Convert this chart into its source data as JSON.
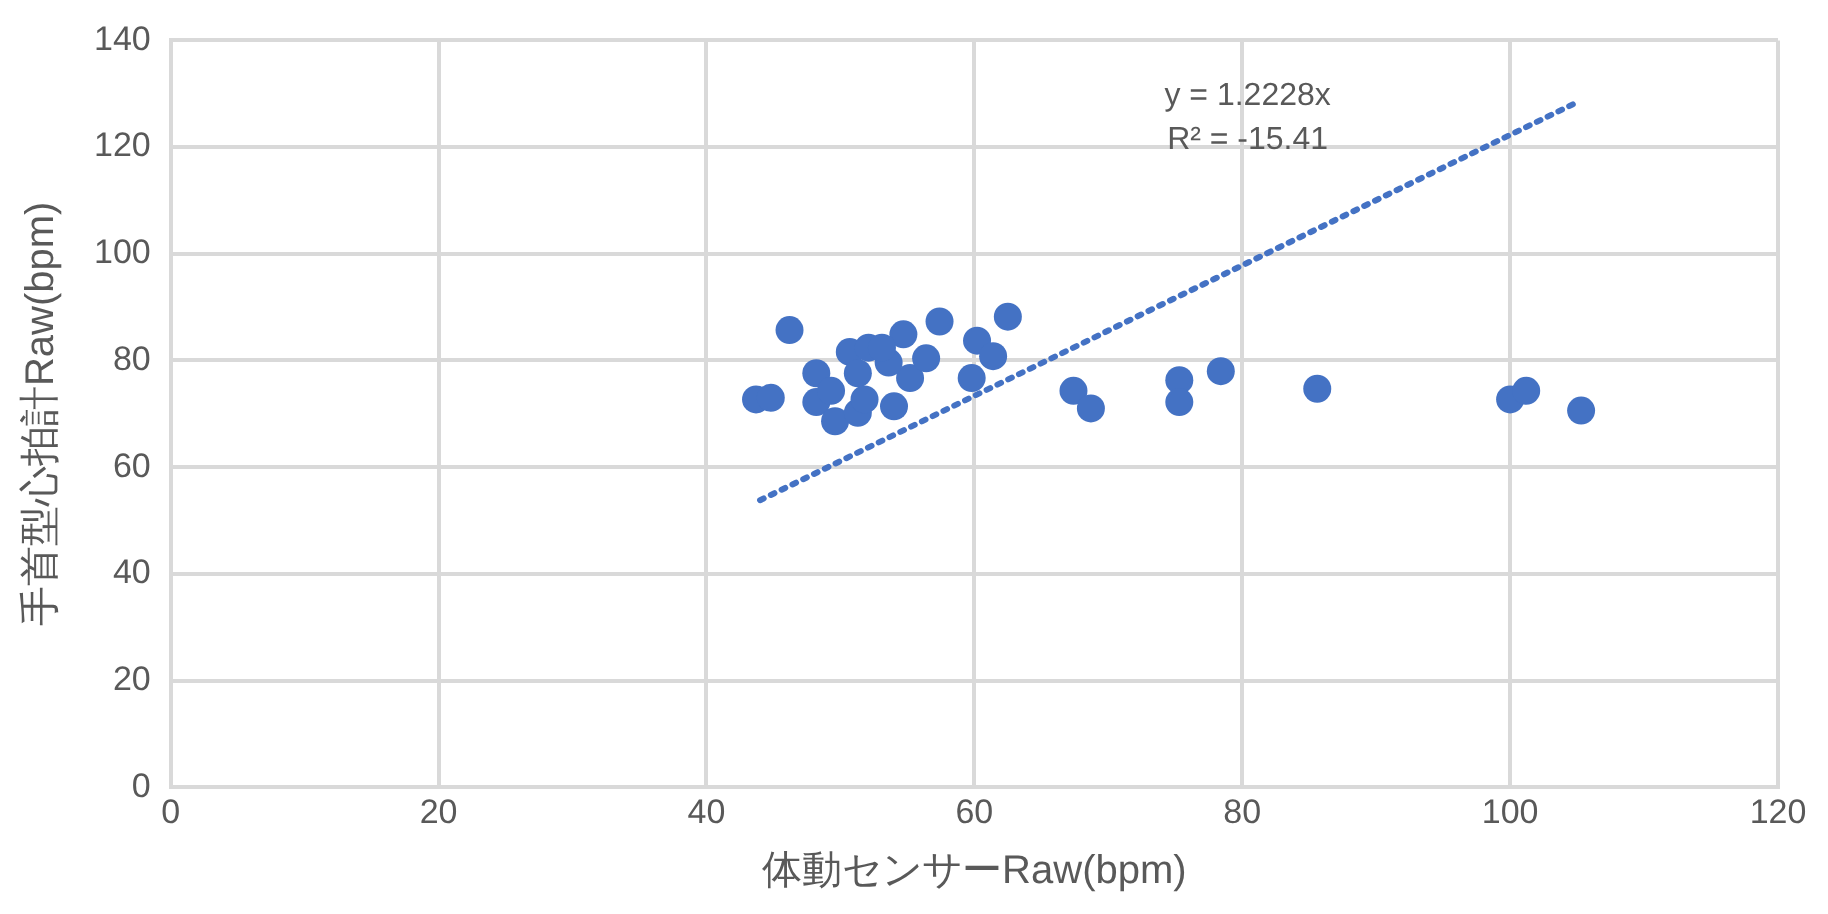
{
  "chart_data": {
    "type": "scatter",
    "xlabel": "体動センサーRaw(bpm)",
    "ylabel": "手首型心拍計Raw(bpm)",
    "series": [
      {
        "type": "scatter",
        "color": "#4472c4",
        "marker": "circle",
        "x": [
          43.7,
          44.8,
          46.2,
          48.2,
          48.2,
          49.6,
          50.7,
          52.1,
          51.3,
          54,
          54.7,
          55.2,
          56.4,
          57.4,
          59.8,
          60.2,
          61.4,
          62.5,
          67.4,
          68.7,
          75.3,
          75.3,
          78.4,
          85.6,
          100,
          101.2,
          105.3,
          51.3,
          53.6,
          51.8,
          49.3,
          53.1
        ],
        "values": [
          72.7,
          73,
          85.7,
          77.6,
          72.2,
          68.6,
          81.6,
          82.4,
          70.2,
          71.4,
          84.9,
          76.7,
          80.4,
          87.3,
          76.7,
          83.7,
          80.8,
          88.2,
          74.3,
          71,
          76.3,
          72.2,
          78,
          74.7,
          72.7,
          74.3,
          70.6,
          77.6,
          79.6,
          72.7,
          74.3,
          82.4
        ]
      },
      {
        "type": "line",
        "color": "#4472c4",
        "line_style": "dotted",
        "marker": "none",
        "x": [
          44,
          105
        ],
        "values": [
          53.8,
          128.4
        ]
      }
    ],
    "annotations": [
      "y = 1.2228x",
      "R² = -15.41"
    ],
    "xlim": [
      0,
      120
    ],
    "xticks": [
      0,
      20,
      40,
      60,
      80,
      100,
      120
    ],
    "ylim": [
      0,
      140
    ],
    "yticks": [
      0,
      20,
      40,
      60,
      80,
      100,
      120,
      140
    ],
    "grid": true,
    "legend": false
  }
}
